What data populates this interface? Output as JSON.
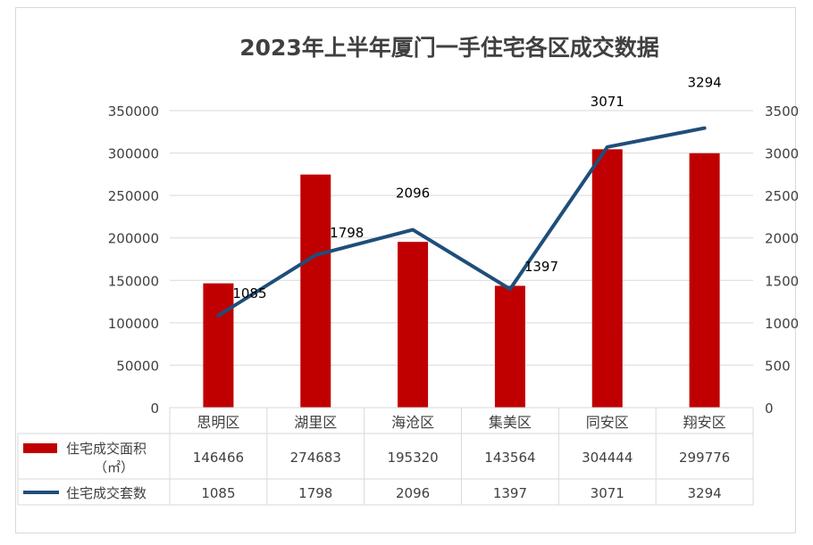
{
  "chart_data": {
    "type": "bar+line",
    "title": "2023年上半年厦门一手住宅各区成交数据",
    "categories": [
      "思明区",
      "湖里区",
      "海沧区",
      "集美区",
      "同安区",
      "翔安区"
    ],
    "series": [
      {
        "name": "住宅成交面积（㎡）",
        "type": "bar",
        "axis": "left",
        "values": [
          146466,
          274683,
          195320,
          143564,
          304444,
          299776
        ]
      },
      {
        "name": "住宅成交套数",
        "type": "line",
        "axis": "right",
        "values": [
          1085,
          1798,
          2096,
          1397,
          3071,
          3294
        ]
      }
    ],
    "y_left": {
      "range": [
        0,
        350000
      ],
      "ticks": [
        "0",
        "50000",
        "100000",
        "150000",
        "200000",
        "250000",
        "300000",
        "350000"
      ]
    },
    "y_right": {
      "range": [
        0,
        3500
      ],
      "ticks": [
        "0",
        "500",
        "1000",
        "1500",
        "2000",
        "2500",
        "3000",
        "3500"
      ]
    },
    "line_labels": [
      "1085",
      "1798",
      "2096",
      "1397",
      "3071",
      "3294"
    ],
    "table": {
      "rows": [
        {
          "label": "住宅成交面积（㎡）",
          "values": [
            "146466",
            "274683",
            "195320",
            "143564",
            "304444",
            "299776"
          ]
        },
        {
          "label": "住宅成交套数",
          "values": [
            "1085",
            "1798",
            "2096",
            "1397",
            "3071",
            "3294"
          ]
        }
      ]
    },
    "grid": true,
    "legend": "data-table",
    "colors": {
      "bar": "#c00000",
      "line": "#1f4e79",
      "grid": "#d9d9d9",
      "text": "#404040"
    }
  }
}
